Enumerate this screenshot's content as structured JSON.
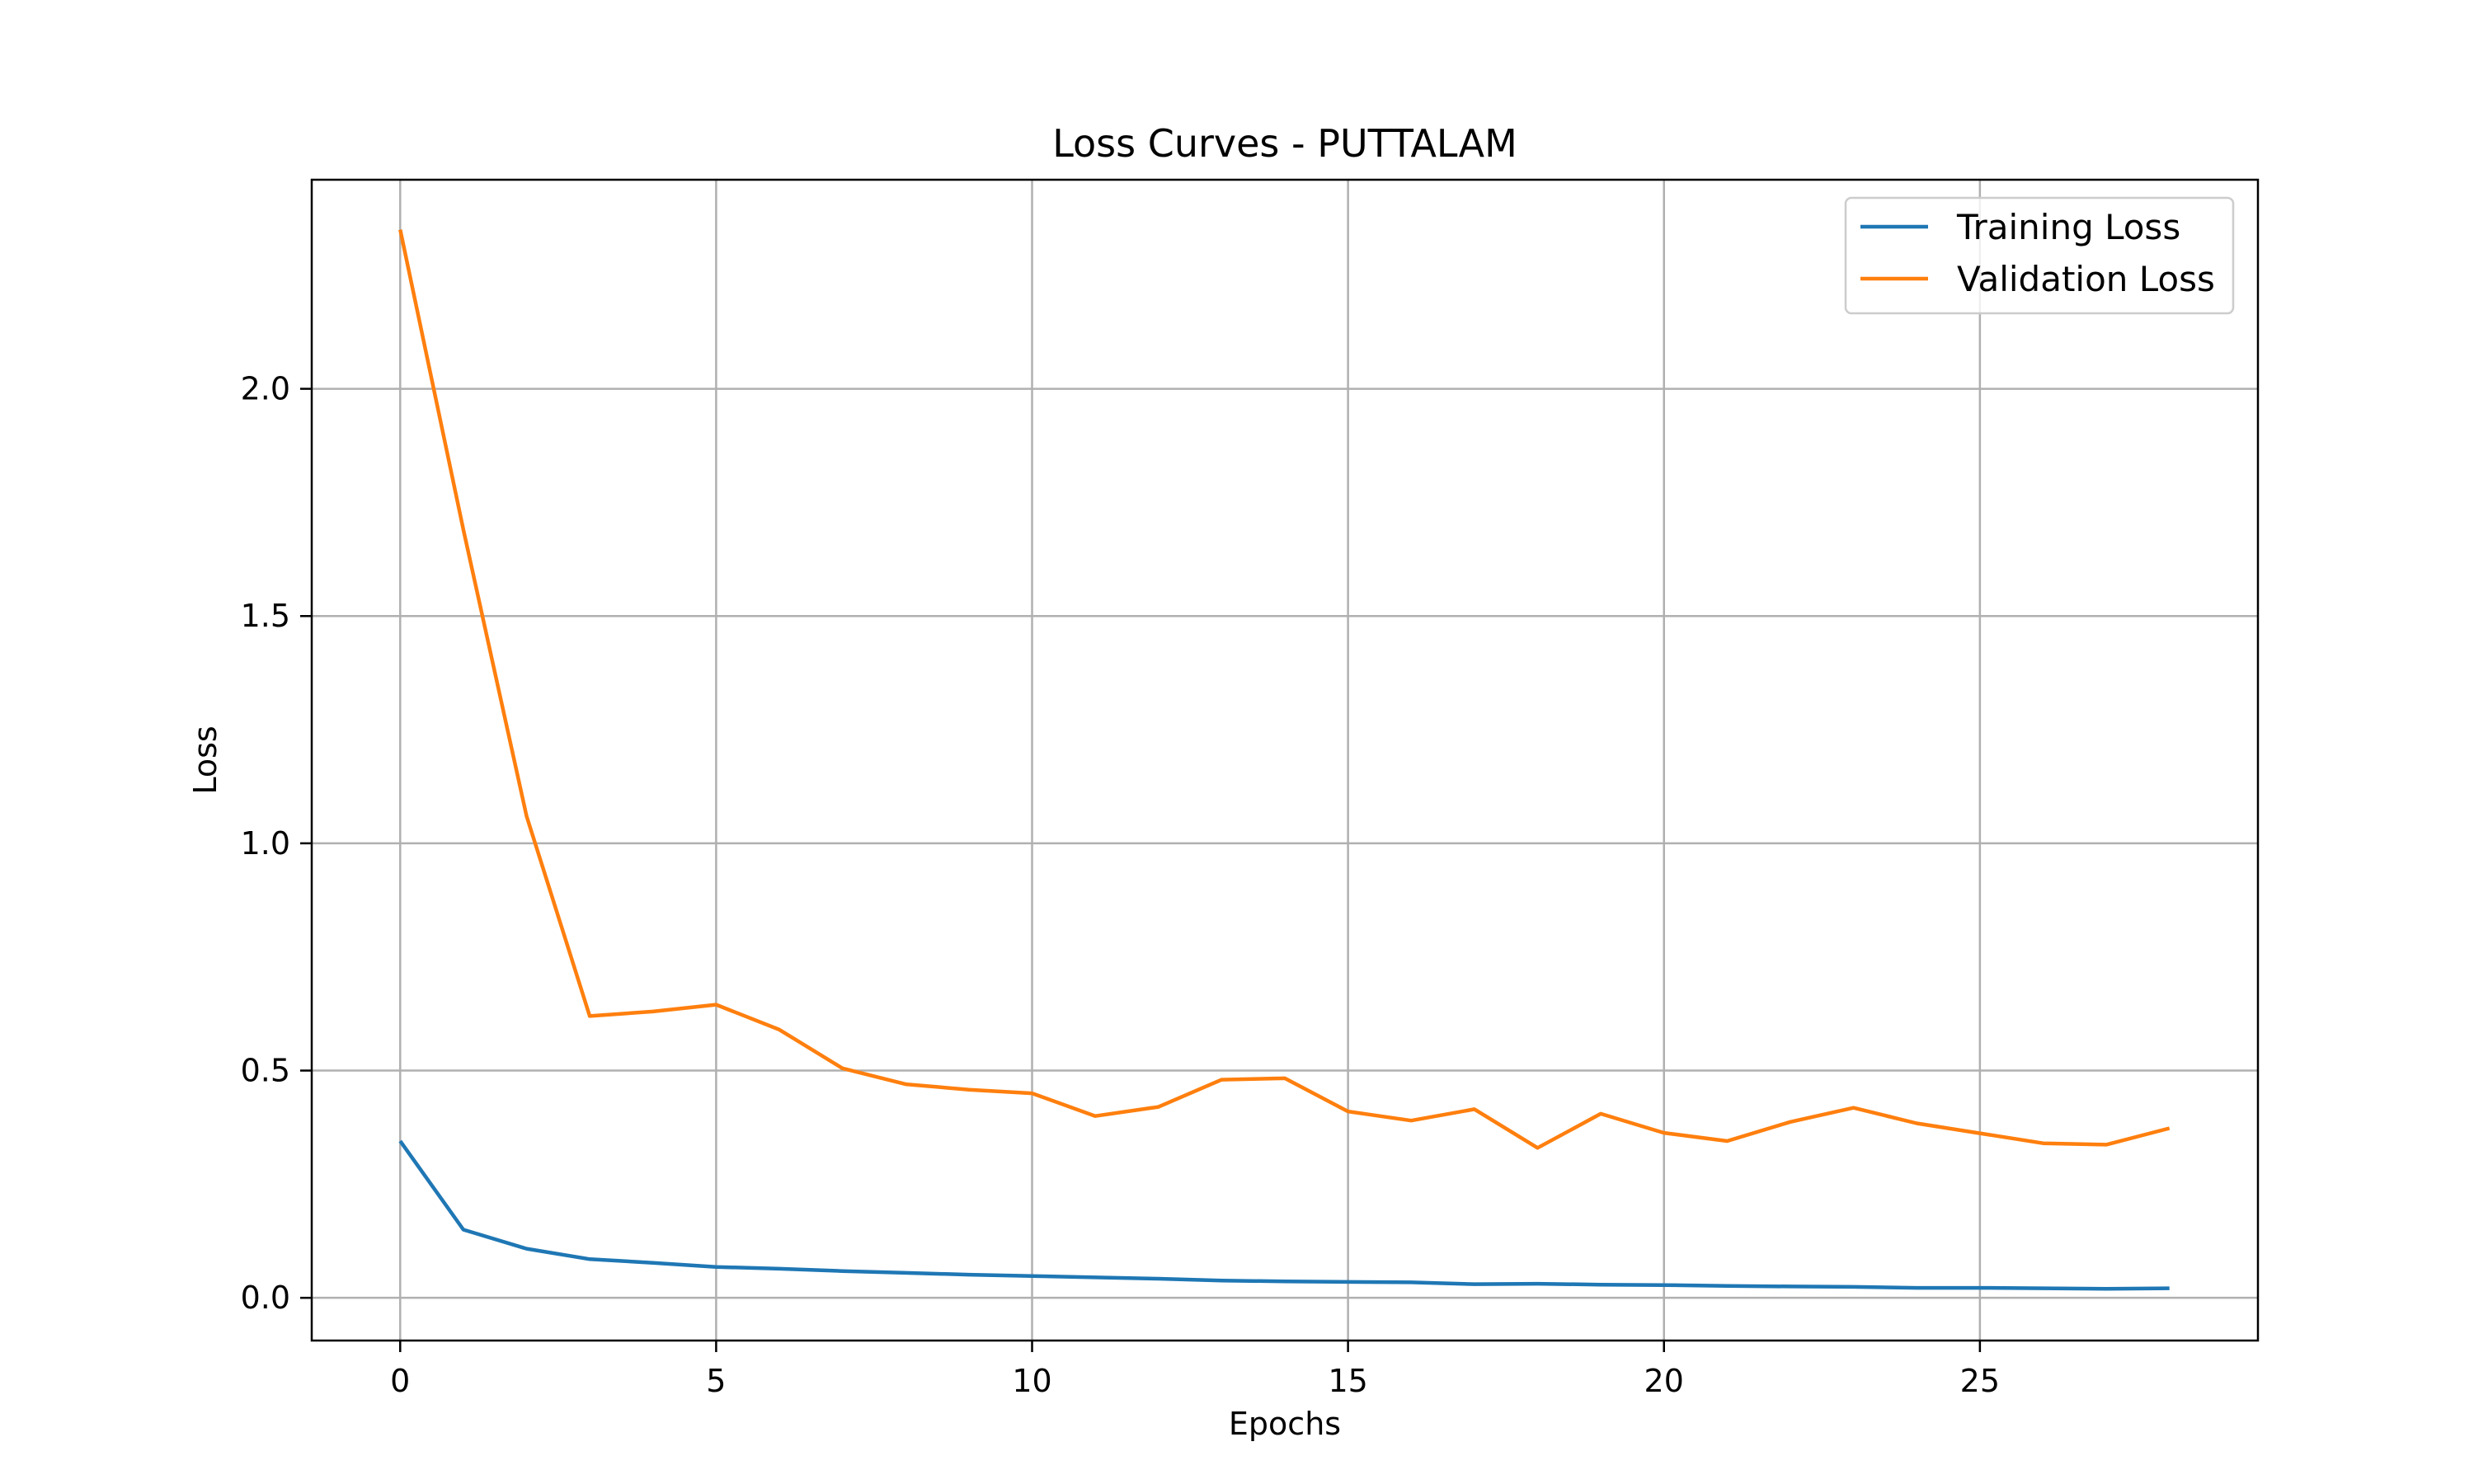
{
  "chart_data": {
    "type": "line",
    "title": "Loss Curves - PUTTALAM",
    "xlabel": "Epochs",
    "ylabel": "Loss",
    "xlim": [
      -1.4,
      29.4
    ],
    "ylim": [
      -0.094,
      2.46
    ],
    "xticks": [
      0,
      5,
      10,
      15,
      20,
      25
    ],
    "xtick_labels": [
      "0",
      "5",
      "10",
      "15",
      "20",
      "25"
    ],
    "yticks": [
      0.0,
      0.5,
      1.0,
      1.5,
      2.0
    ],
    "ytick_labels": [
      "0.0",
      "0.5",
      "1.0",
      "1.5",
      "2.0"
    ],
    "grid": true,
    "legend_position": "top-right",
    "x": [
      0,
      1,
      2,
      3,
      4,
      5,
      6,
      7,
      8,
      9,
      10,
      11,
      12,
      13,
      14,
      15,
      16,
      17,
      18,
      19,
      20,
      21,
      22,
      23,
      24,
      25,
      26,
      27,
      28
    ],
    "series": [
      {
        "name": "Training Loss",
        "color": "#1f77b4",
        "values": [
          0.345,
          0.15,
          0.108,
          0.085,
          0.077,
          0.068,
          0.064,
          0.059,
          0.055,
          0.051,
          0.048,
          0.045,
          0.042,
          0.038,
          0.036,
          0.035,
          0.034,
          0.03,
          0.031,
          0.029,
          0.028,
          0.026,
          0.025,
          0.024,
          0.022,
          0.022,
          0.021,
          0.02,
          0.021
        ]
      },
      {
        "name": "Validation Loss",
        "color": "#ff7f0e",
        "values": [
          2.35,
          1.69,
          1.06,
          0.62,
          0.63,
          0.645,
          0.59,
          0.505,
          0.47,
          0.458,
          0.45,
          0.4,
          0.42,
          0.48,
          0.483,
          0.41,
          0.39,
          0.415,
          0.33,
          0.405,
          0.363,
          0.345,
          0.387,
          0.418,
          0.384,
          0.362,
          0.34,
          0.337,
          0.373
        ]
      }
    ]
  }
}
